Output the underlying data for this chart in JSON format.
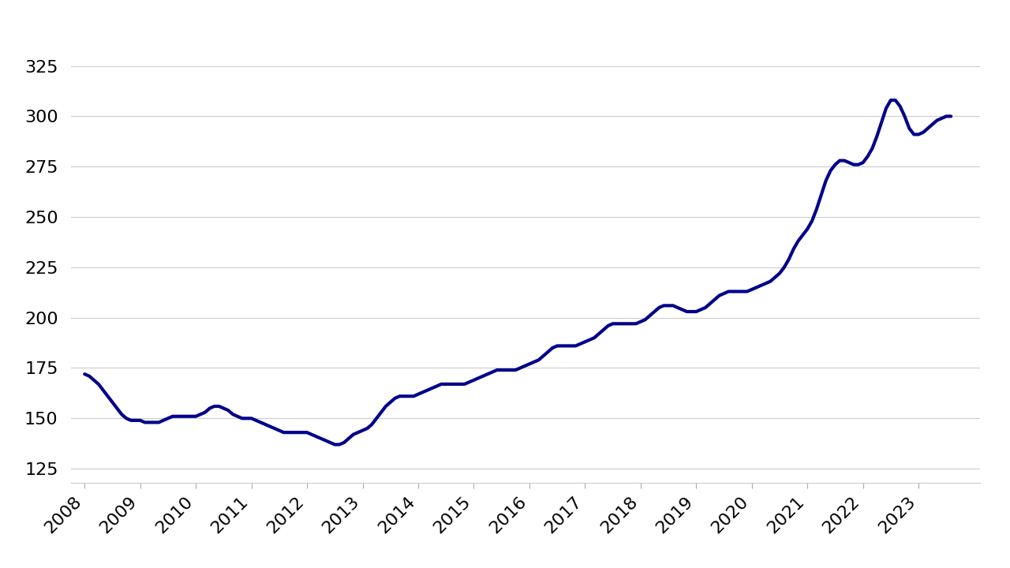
{
  "line_color": "#00008B",
  "line_width": 3.0,
  "background_color": "#ffffff",
  "grid_color": "#cccccc",
  "yticks": [
    125,
    150,
    175,
    200,
    225,
    250,
    275,
    300,
    325
  ],
  "xticks": [
    2008,
    2009,
    2010,
    2011,
    2012,
    2013,
    2014,
    2015,
    2016,
    2017,
    2018,
    2019,
    2020,
    2021,
    2022,
    2023
  ],
  "ylim": [
    118,
    338
  ],
  "xlim": [
    2007.75,
    2024.1
  ],
  "tick_fontsize": 16,
  "data": {
    "x": [
      2008.0,
      2008.083,
      2008.167,
      2008.25,
      2008.333,
      2008.417,
      2008.5,
      2008.583,
      2008.667,
      2008.75,
      2008.833,
      2008.917,
      2009.0,
      2009.083,
      2009.167,
      2009.25,
      2009.333,
      2009.417,
      2009.5,
      2009.583,
      2009.667,
      2009.75,
      2009.833,
      2009.917,
      2010.0,
      2010.083,
      2010.167,
      2010.25,
      2010.333,
      2010.417,
      2010.5,
      2010.583,
      2010.667,
      2010.75,
      2010.833,
      2010.917,
      2011.0,
      2011.083,
      2011.167,
      2011.25,
      2011.333,
      2011.417,
      2011.5,
      2011.583,
      2011.667,
      2011.75,
      2011.833,
      2011.917,
      2012.0,
      2012.083,
      2012.167,
      2012.25,
      2012.333,
      2012.417,
      2012.5,
      2012.583,
      2012.667,
      2012.75,
      2012.833,
      2012.917,
      2013.0,
      2013.083,
      2013.167,
      2013.25,
      2013.333,
      2013.417,
      2013.5,
      2013.583,
      2013.667,
      2013.75,
      2013.833,
      2013.917,
      2014.0,
      2014.083,
      2014.167,
      2014.25,
      2014.333,
      2014.417,
      2014.5,
      2014.583,
      2014.667,
      2014.75,
      2014.833,
      2014.917,
      2015.0,
      2015.083,
      2015.167,
      2015.25,
      2015.333,
      2015.417,
      2015.5,
      2015.583,
      2015.667,
      2015.75,
      2015.833,
      2015.917,
      2016.0,
      2016.083,
      2016.167,
      2016.25,
      2016.333,
      2016.417,
      2016.5,
      2016.583,
      2016.667,
      2016.75,
      2016.833,
      2016.917,
      2017.0,
      2017.083,
      2017.167,
      2017.25,
      2017.333,
      2017.417,
      2017.5,
      2017.583,
      2017.667,
      2017.75,
      2017.833,
      2017.917,
      2018.0,
      2018.083,
      2018.167,
      2018.25,
      2018.333,
      2018.417,
      2018.5,
      2018.583,
      2018.667,
      2018.75,
      2018.833,
      2018.917,
      2019.0,
      2019.083,
      2019.167,
      2019.25,
      2019.333,
      2019.417,
      2019.5,
      2019.583,
      2019.667,
      2019.75,
      2019.833,
      2019.917,
      2020.0,
      2020.083,
      2020.167,
      2020.25,
      2020.333,
      2020.417,
      2020.5,
      2020.583,
      2020.667,
      2020.75,
      2020.833,
      2020.917,
      2021.0,
      2021.083,
      2021.167,
      2021.25,
      2021.333,
      2021.417,
      2021.5,
      2021.583,
      2021.667,
      2021.75,
      2021.833,
      2021.917,
      2022.0,
      2022.083,
      2022.167,
      2022.25,
      2022.333,
      2022.417,
      2022.5,
      2022.583,
      2022.667,
      2022.75,
      2022.833,
      2022.917,
      2023.0,
      2023.083,
      2023.167,
      2023.25,
      2023.333,
      2023.417,
      2023.5,
      2023.583
    ],
    "y": [
      172,
      171,
      169,
      167,
      164,
      161,
      158,
      155,
      152,
      150,
      149,
      149,
      149,
      148,
      148,
      148,
      148,
      149,
      150,
      151,
      151,
      151,
      151,
      151,
      151,
      152,
      153,
      155,
      156,
      156,
      155,
      154,
      152,
      151,
      150,
      150,
      150,
      149,
      148,
      147,
      146,
      145,
      144,
      143,
      143,
      143,
      143,
      143,
      143,
      142,
      141,
      140,
      139,
      138,
      137,
      137,
      138,
      140,
      142,
      143,
      144,
      145,
      147,
      150,
      153,
      156,
      158,
      160,
      161,
      161,
      161,
      161,
      162,
      163,
      164,
      165,
      166,
      167,
      167,
      167,
      167,
      167,
      167,
      168,
      169,
      170,
      171,
      172,
      173,
      174,
      174,
      174,
      174,
      174,
      175,
      176,
      177,
      178,
      179,
      181,
      183,
      185,
      186,
      186,
      186,
      186,
      186,
      187,
      188,
      189,
      190,
      192,
      194,
      196,
      197,
      197,
      197,
      197,
      197,
      197,
      198,
      199,
      201,
      203,
      205,
      206,
      206,
      206,
      205,
      204,
      203,
      203,
      203,
      204,
      205,
      207,
      209,
      211,
      212,
      213,
      213,
      213,
      213,
      213,
      214,
      215,
      216,
      217,
      218,
      220,
      222,
      225,
      229,
      234,
      238,
      241,
      244,
      248,
      254,
      261,
      268,
      273,
      276,
      278,
      278,
      277,
      276,
      276,
      277,
      280,
      284,
      290,
      297,
      304,
      308,
      308,
      305,
      300,
      294,
      291,
      291,
      292,
      294,
      296,
      298,
      299,
      300,
      300
    ]
  }
}
